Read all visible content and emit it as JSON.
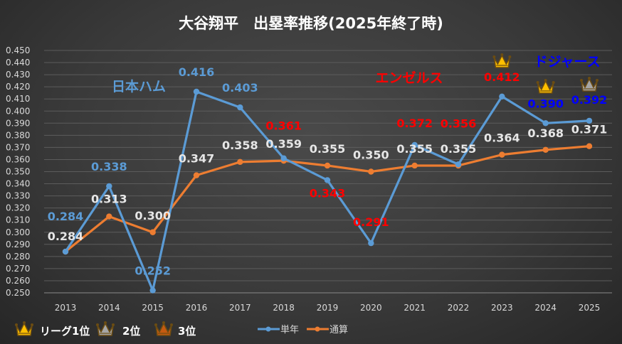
{
  "chart_data": {
    "type": "line",
    "title": "大谷翔平　出塁率推移(2025年終了時)",
    "xlabel": "",
    "ylabel": "",
    "x": [
      "2013",
      "2014",
      "2015",
      "2016",
      "2017",
      "2018",
      "2019",
      "2020",
      "2021",
      "2022",
      "2023",
      "2024",
      "2025"
    ],
    "ylim": [
      0.25,
      0.45
    ],
    "ytick_step": 0.01,
    "grid": true,
    "legend_position": "bottom",
    "series": [
      {
        "name": "単年",
        "color": "#5B9BD5",
        "values": [
          0.284,
          0.338,
          0.252,
          0.416,
          0.403,
          0.361,
          0.343,
          0.291,
          0.372,
          0.356,
          0.412,
          0.39,
          0.392
        ],
        "labels": [
          "0.284",
          "0.338",
          "0.252",
          "0.416",
          "0.403",
          "0.361",
          "0.343",
          "0.291",
          "0.372",
          "0.356",
          "0.412",
          "0.390",
          "0.392"
        ]
      },
      {
        "name": "通算",
        "color": "#ED7D31",
        "values": [
          0.284,
          0.313,
          0.3,
          0.347,
          0.358,
          0.359,
          0.355,
          0.35,
          0.355,
          0.355,
          0.364,
          0.368,
          0.371
        ],
        "labels": [
          "0.284",
          "0.313",
          "0.300",
          "0.347",
          "0.358",
          "0.359",
          "0.355",
          "0.350",
          "0.355",
          "0.355",
          "0.364",
          "0.368",
          "0.371"
        ]
      }
    ],
    "team_eras": [
      {
        "name": "日本ハム",
        "years": [
          "2013",
          "2014",
          "2015",
          "2016",
          "2017"
        ],
        "color": "#5B9BD5"
      },
      {
        "name": "エンゼルス",
        "years": [
          "2018",
          "2019",
          "2020",
          "2021",
          "2022",
          "2023"
        ],
        "color": "#FF0000"
      },
      {
        "name": "ドジャース",
        "years": [
          "2024",
          "2025"
        ],
        "color": "#0000FF"
      }
    ],
    "league_rank_crowns": [
      {
        "year": "2023",
        "rank": 1
      },
      {
        "year": "2024",
        "rank": 1
      },
      {
        "year": "2025",
        "rank": 2
      }
    ],
    "rank_legend": [
      {
        "rank": 1,
        "label": "リーグ1位",
        "color": "#FFC000"
      },
      {
        "rank": 2,
        "label": "2位",
        "color": "#A6A6A6"
      },
      {
        "rank": 3,
        "label": "3位",
        "color": "#C55A11"
      }
    ]
  }
}
